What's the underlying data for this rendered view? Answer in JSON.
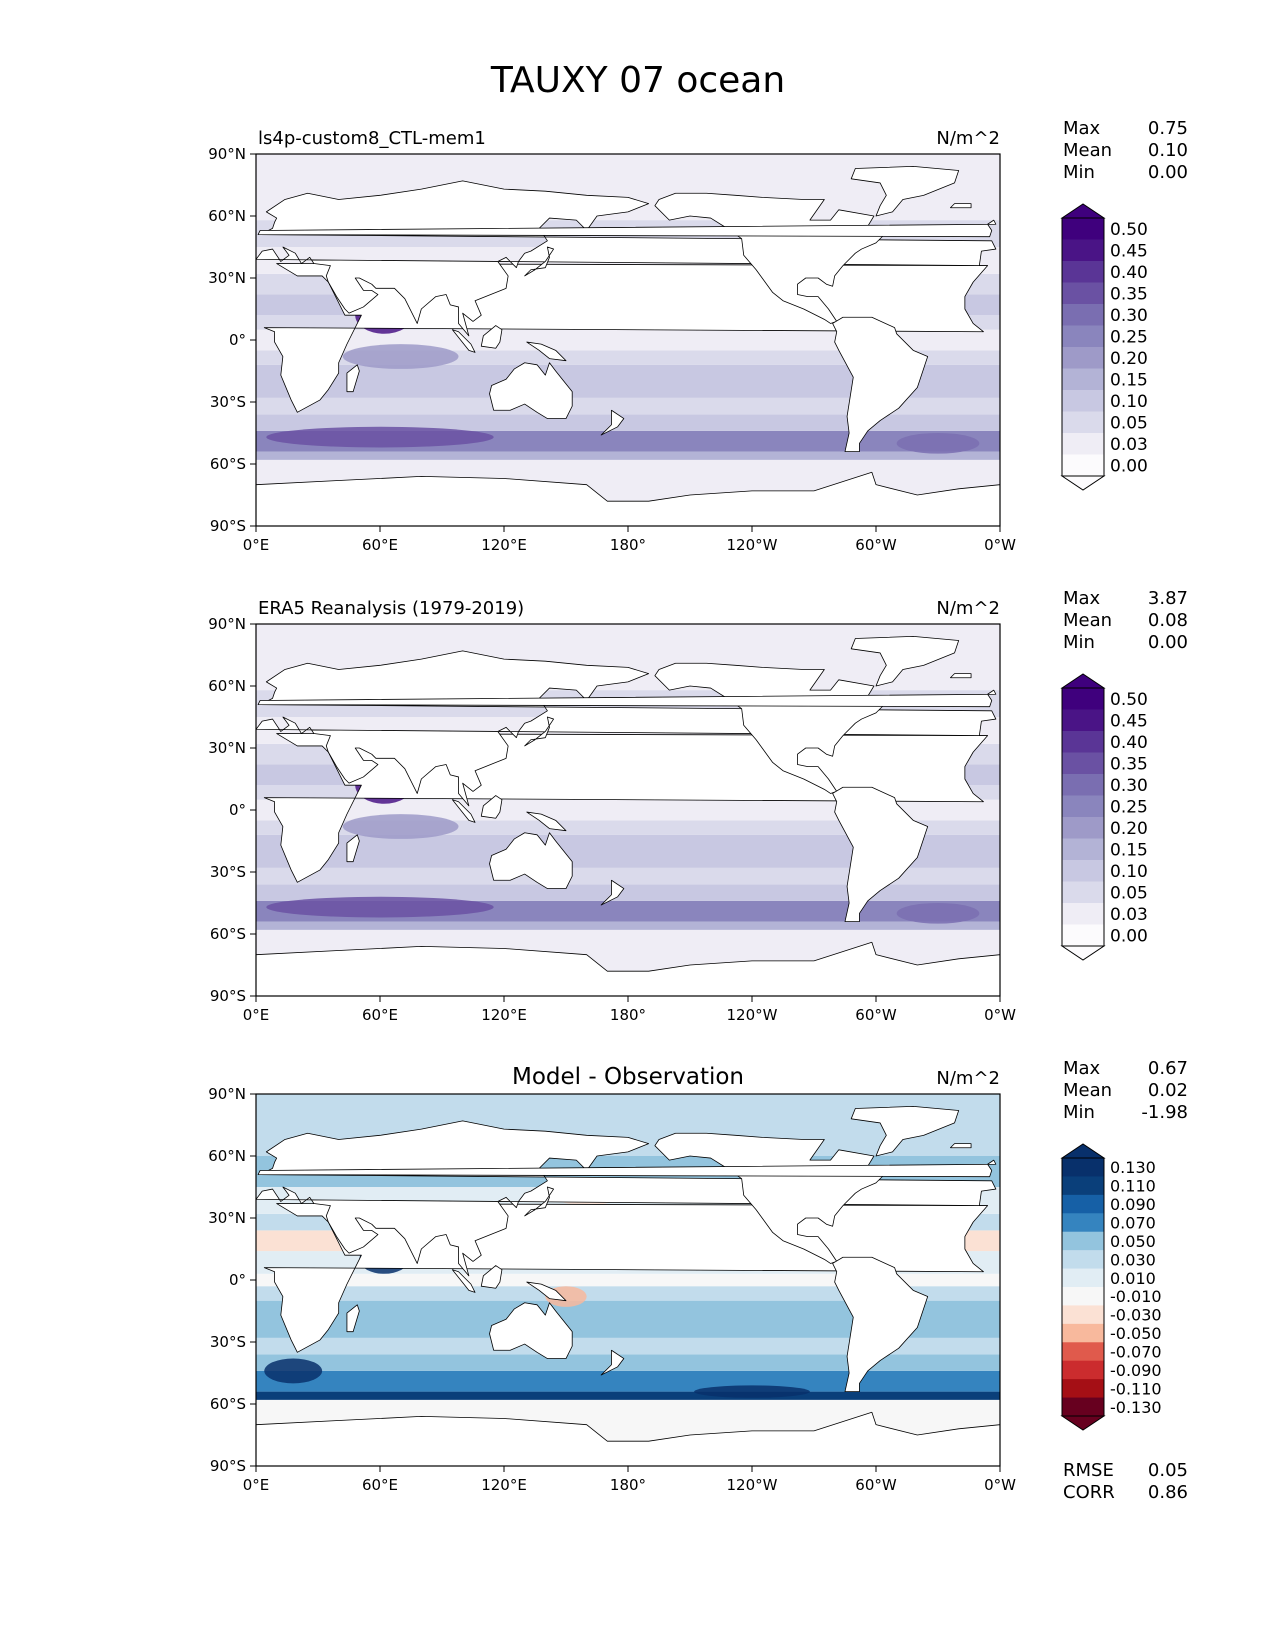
{
  "figure": {
    "title": "TAUXY 07 ocean"
  },
  "colors": {
    "sequential": [
      "#fcfbfd",
      "#efedf5",
      "#dadaeb",
      "#c8c8e2",
      "#b3b3d6",
      "#9e9ac8",
      "#8a85bd",
      "#7a6eb1",
      "#6a51a3",
      "#5a3596",
      "#4a1486",
      "#3f007d"
    ],
    "diverging": [
      "#67001f",
      "#a50f15",
      "#cb2c2e",
      "#e05a4c",
      "#f08c72",
      "#f8b99d",
      "#fbe1d4",
      "#f7f7f7",
      "#e1edf4",
      "#c2dcec",
      "#93c4de",
      "#5ea6cf",
      "#3584bf",
      "#1660a6",
      "#0a3f7a",
      "#08306b"
    ],
    "ocean_low": "#f7f7fc",
    "land": "#ffffff",
    "coast": "#000000"
  },
  "chart_data": [
    {
      "type": "heatmap",
      "title": "ls4p-custom8_CTL-mem1",
      "units": "N/m^2",
      "stats": [
        {
          "label": "Max",
          "value": "0.75"
        },
        {
          "label": "Mean",
          "value": "0.10"
        },
        {
          "label": "Min",
          "value": "0.00"
        }
      ],
      "xticks": [
        "0°E",
        "60°E",
        "120°E",
        "180°",
        "120°W",
        "60°W",
        "0°W"
      ],
      "yticks": [
        "90°N",
        "60°N",
        "30°N",
        "0°",
        "30°S",
        "60°S",
        "90°S"
      ],
      "colorbar": [
        "0.50",
        "0.45",
        "0.40",
        "0.35",
        "0.30",
        "0.25",
        "0.20",
        "0.15",
        "0.10",
        "0.05",
        "0.03",
        "0.00"
      ],
      "xlim": [
        0,
        360
      ],
      "ylim": [
        -90,
        90
      ],
      "palette": "sequential"
    },
    {
      "type": "heatmap",
      "title": "ERA5 Reanalysis (1979-2019)",
      "units": "N/m^2",
      "stats": [
        {
          "label": "Max",
          "value": "3.87"
        },
        {
          "label": "Mean",
          "value": "0.08"
        },
        {
          "label": "Min",
          "value": "0.00"
        }
      ],
      "xticks": [
        "0°E",
        "60°E",
        "120°E",
        "180°",
        "120°W",
        "60°W",
        "0°W"
      ],
      "yticks": [
        "90°N",
        "60°N",
        "30°N",
        "0°",
        "30°S",
        "60°S",
        "90°S"
      ],
      "colorbar": [
        "0.50",
        "0.45",
        "0.40",
        "0.35",
        "0.30",
        "0.25",
        "0.20",
        "0.15",
        "0.10",
        "0.05",
        "0.03",
        "0.00"
      ],
      "xlim": [
        0,
        360
      ],
      "ylim": [
        -90,
        90
      ],
      "palette": "sequential"
    },
    {
      "type": "heatmap",
      "title": "Model - Observation",
      "units": "N/m^2",
      "stats": [
        {
          "label": "Max",
          "value": "0.67"
        },
        {
          "label": "Mean",
          "value": "0.02"
        },
        {
          "label": "Min",
          "value": "-1.98"
        }
      ],
      "extra_stats": [
        {
          "label": "RMSE",
          "value": "0.05"
        },
        {
          "label": "CORR",
          "value": "0.86"
        }
      ],
      "xticks": [
        "0°E",
        "60°E",
        "120°E",
        "180°",
        "120°W",
        "60°W",
        "0°W"
      ],
      "yticks": [
        "90°N",
        "60°N",
        "30°N",
        "0°",
        "30°S",
        "60°S",
        "90°S"
      ],
      "colorbar": [
        "0.130",
        "0.110",
        "0.090",
        "0.070",
        "0.050",
        "0.030",
        "0.010",
        "-0.010",
        "-0.030",
        "-0.050",
        "-0.070",
        "-0.090",
        "-0.110",
        "-0.130"
      ],
      "xlim": [
        0,
        360
      ],
      "ylim": [
        -90,
        90
      ],
      "palette": "diverging"
    }
  ]
}
